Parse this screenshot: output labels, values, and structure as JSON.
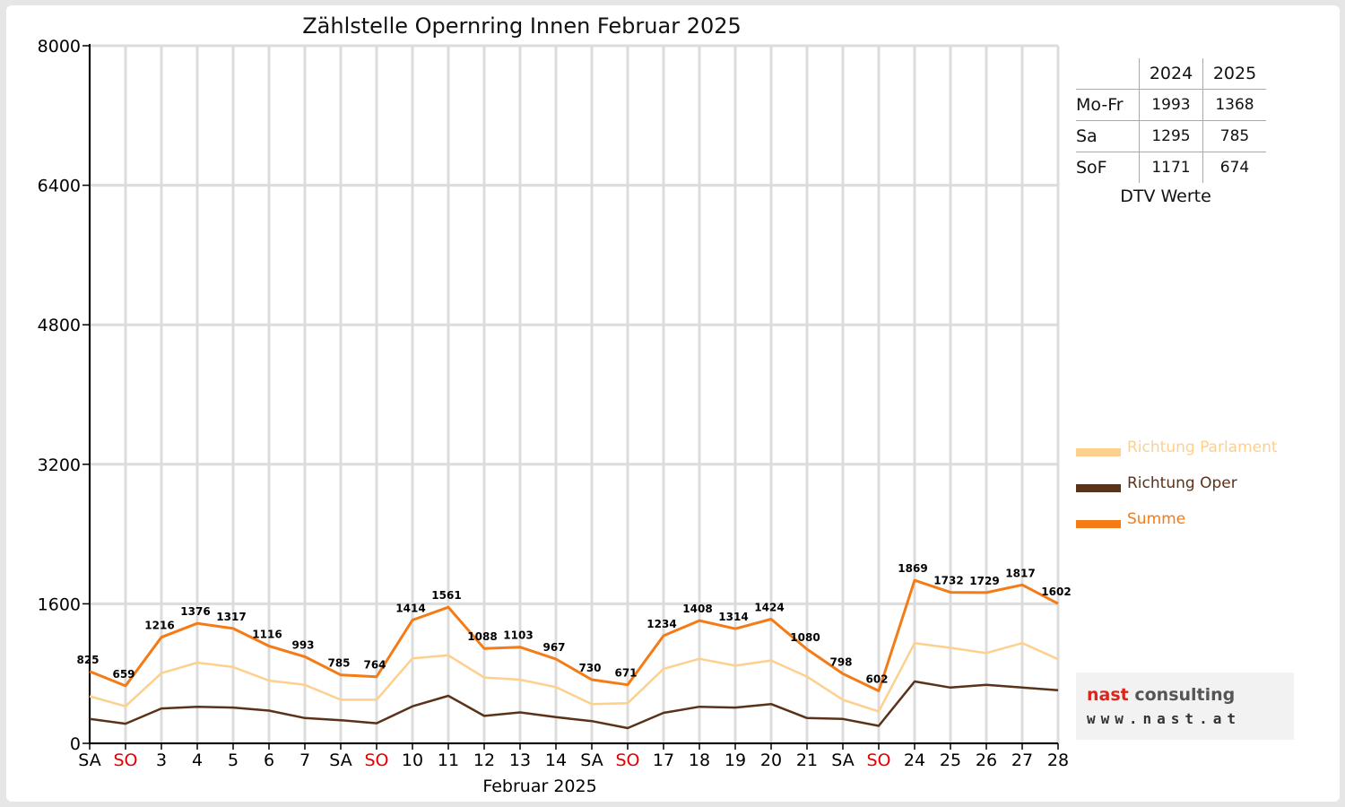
{
  "chart_data": {
    "type": "line",
    "title": "Zählstelle Opernring Innen Februar 2025",
    "xlabel": "Februar 2025",
    "ylabel": "",
    "ylim": [
      0,
      8000
    ],
    "yticks": [
      "0",
      "1600",
      "3200",
      "4800",
      "6400",
      "8000"
    ],
    "grid": true,
    "legend_position": "right",
    "categories": [
      "SA",
      "SO",
      "3",
      "4",
      "5",
      "6",
      "7",
      "SA",
      "SO",
      "10",
      "11",
      "12",
      "13",
      "14",
      "SA",
      "SO",
      "17",
      "18",
      "19",
      "20",
      "21",
      "SA",
      "SO",
      "24",
      "25",
      "26",
      "27",
      "28"
    ],
    "weekend_label_color": {
      "SO": "#e00000"
    },
    "series": [
      {
        "name": "Richtung Parlament",
        "color": "#fdd08e",
        "values": [
          540,
          425,
          805,
          925,
          875,
          720,
          670,
          500,
          500,
          975,
          1010,
          755,
          730,
          645,
          450,
          460,
          855,
          970,
          890,
          950,
          765,
          500,
          365,
          1150,
          1095,
          1035,
          1150,
          965
        ]
      },
      {
        "name": "Richtung Oper",
        "color": "#5a3219",
        "values": [
          280,
          225,
          400,
          420,
          410,
          375,
          290,
          265,
          230,
          425,
          545,
          315,
          355,
          300,
          255,
          175,
          350,
          420,
          410,
          450,
          290,
          280,
          200,
          710,
          640,
          670,
          640,
          610
        ]
      },
      {
        "name": "Summe",
        "color": "#f47b15",
        "values": [
          825,
          659,
          1216,
          1376,
          1317,
          1116,
          993,
          785,
          764,
          1414,
          1561,
          1088,
          1103,
          967,
          730,
          671,
          1234,
          1408,
          1314,
          1424,
          1080,
          798,
          602,
          1869,
          1732,
          1729,
          1817,
          1602
        ],
        "data_labels": [
          "825",
          "659",
          "1216",
          "1376",
          "1317",
          "1116",
          "993",
          "785",
          "764",
          "1414",
          "1561",
          "1088",
          "1103",
          "967",
          "730",
          "671",
          "1234",
          "1408",
          "1314",
          "1424",
          "1080",
          "798",
          "602",
          "1869",
          "1732",
          "1729",
          "1817",
          "1602"
        ]
      }
    ]
  },
  "dtv_table": {
    "header": [
      "2024",
      "2025"
    ],
    "rows": [
      {
        "label": "Mo-Fr",
        "v2024": "1993",
        "v2025": "1368"
      },
      {
        "label": "Sa",
        "v2024": "1295",
        "v2025": "785"
      },
      {
        "label": "SoF",
        "v2024": "1171",
        "v2025": "674"
      }
    ],
    "caption": "DTV Werte"
  },
  "logo": {
    "brand_red": "nast",
    "brand_rest": " consulting",
    "url": "www.nast.at"
  }
}
